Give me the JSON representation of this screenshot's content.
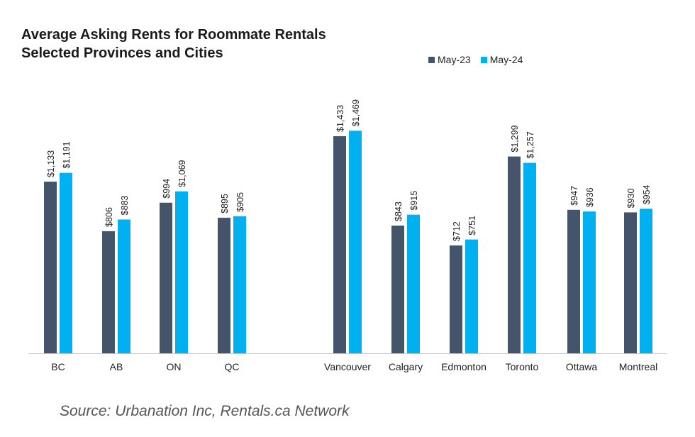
{
  "chart_data": {
    "type": "bar",
    "title": "Average Asking Rents for Roommate Rentals",
    "subtitle": "Selected Provinces and Cities",
    "categories": [
      "BC",
      "AB",
      "ON",
      "QC",
      "Vancouver",
      "Calgary",
      "Edmonton",
      "Toronto",
      "Ottawa",
      "Montreal"
    ],
    "series": [
      {
        "name": "May-23",
        "color": "#44546a",
        "values": [
          1133,
          806,
          994,
          895,
          1433,
          843,
          712,
          1299,
          947,
          930
        ],
        "labels": [
          "$1,133",
          "$806",
          "$994",
          "$895",
          "$1,433",
          "$843",
          "$712",
          "$1,299",
          "$947",
          "$930"
        ]
      },
      {
        "name": "May-24",
        "color": "#00b0f0",
        "values": [
          1191,
          883,
          1069,
          905,
          1469,
          915,
          751,
          1257,
          936,
          954
        ],
        "labels": [
          "$1,191",
          "$883",
          "$1,069",
          "$905",
          "$1,469",
          "$915",
          "$751",
          "$1,257",
          "$936",
          "$954"
        ]
      }
    ],
    "xlabel": "",
    "ylabel": "",
    "ylim": [
      0,
      1600
    ],
    "grid": false,
    "legend_position": "top-right"
  },
  "source": "Source: Urbanation Inc, Rentals.ca Network"
}
